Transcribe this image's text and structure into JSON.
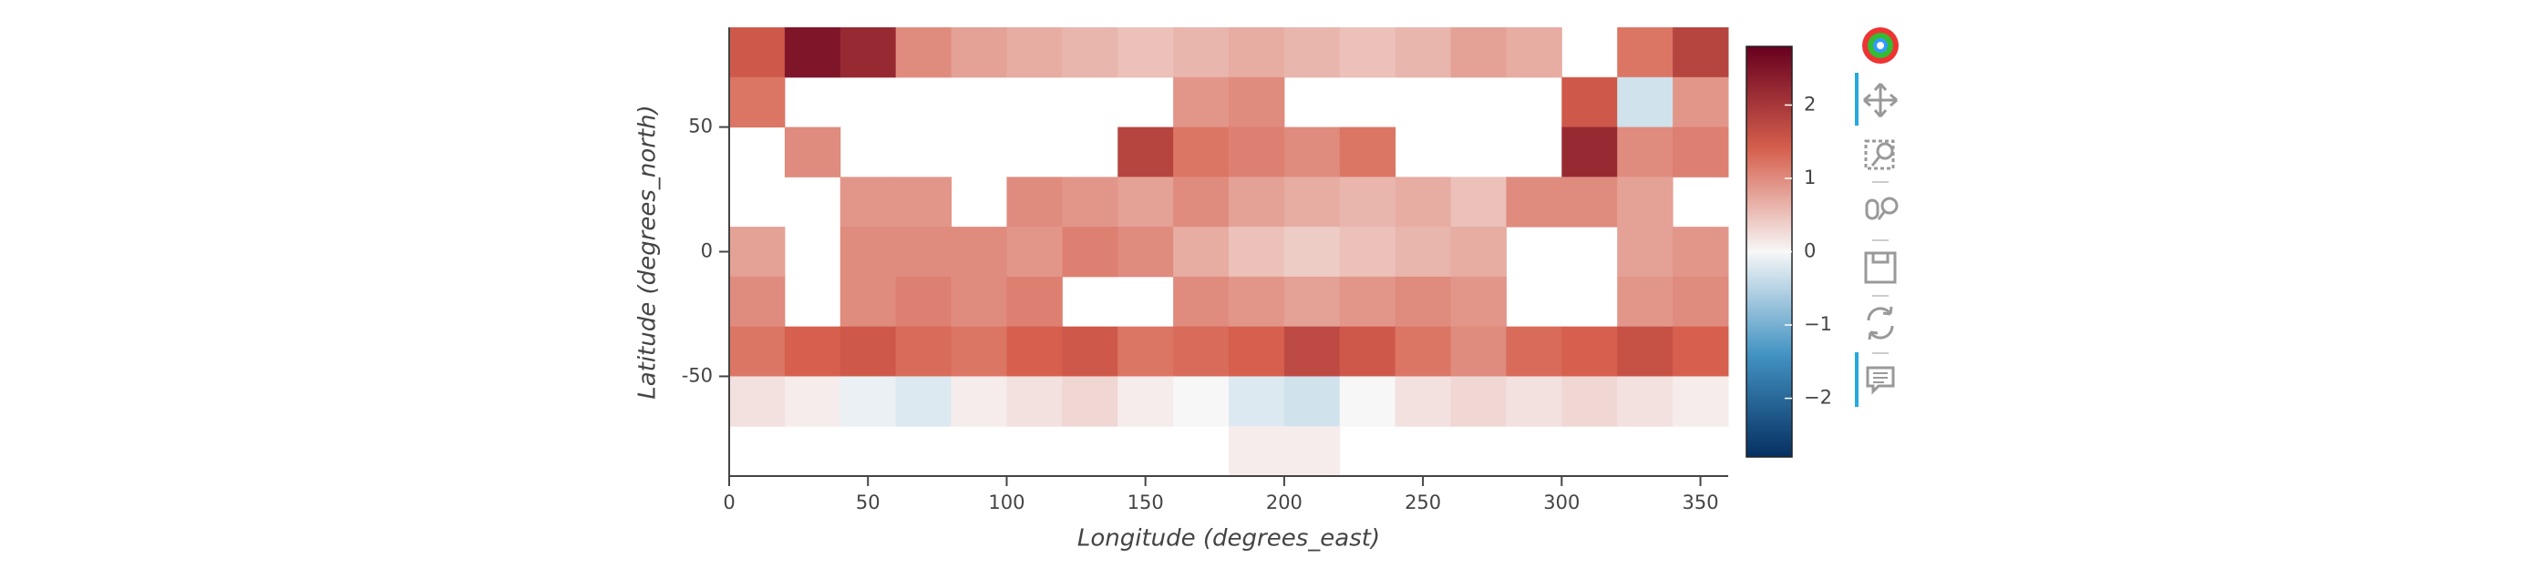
{
  "chart_data": {
    "type": "heatmap",
    "xlabel": "Longitude (degrees_east)",
    "ylabel": "Latitude (degrees_north)",
    "xlim": [
      0,
      360
    ],
    "ylim": [
      -90,
      90
    ],
    "xticks": [
      0,
      50,
      100,
      150,
      200,
      250,
      300,
      350
    ],
    "yticks": [
      -50,
      0,
      50
    ],
    "x": [
      10,
      30,
      50,
      70,
      90,
      110,
      130,
      150,
      170,
      190,
      210,
      230,
      250,
      270,
      290,
      310,
      330,
      350
    ],
    "y": [
      80,
      60,
      40,
      20,
      0,
      -20,
      -40,
      -60,
      -80
    ],
    "z": [
      [
        1.5,
        2.5,
        2.2,
        1.0,
        0.8,
        0.7,
        0.6,
        0.5,
        0.6,
        0.7,
        0.6,
        0.5,
        0.6,
        0.8,
        0.7,
        null,
        1.2,
        1.8
      ],
      [
        1.2,
        null,
        null,
        null,
        null,
        null,
        null,
        null,
        0.9,
        1.0,
        null,
        null,
        null,
        null,
        null,
        1.5,
        -0.3,
        0.9
      ],
      [
        null,
        1.0,
        null,
        null,
        null,
        null,
        null,
        1.8,
        1.2,
        1.1,
        1.0,
        1.2,
        null,
        null,
        null,
        2.2,
        1.0,
        1.1
      ],
      [
        null,
        null,
        0.9,
        0.9,
        null,
        1.0,
        0.9,
        0.8,
        1.0,
        0.8,
        0.7,
        0.6,
        0.7,
        0.5,
        1.0,
        1.0,
        0.8,
        null
      ],
      [
        0.8,
        null,
        1.0,
        1.0,
        1.0,
        0.9,
        1.1,
        1.0,
        0.7,
        0.5,
        0.4,
        0.5,
        0.6,
        0.7,
        null,
        null,
        0.8,
        0.9
      ],
      [
        1.0,
        null,
        1.0,
        1.1,
        1.0,
        1.1,
        null,
        null,
        1.0,
        0.9,
        0.8,
        0.9,
        1.0,
        0.9,
        null,
        null,
        0.9,
        1.0
      ],
      [
        1.2,
        1.4,
        1.5,
        1.3,
        1.2,
        1.4,
        1.5,
        1.2,
        1.3,
        1.4,
        1.7,
        1.5,
        1.2,
        1.0,
        1.3,
        1.4,
        1.6,
        1.4
      ],
      [
        0.2,
        0.1,
        -0.1,
        -0.2,
        0.1,
        0.2,
        0.3,
        0.1,
        0.0,
        -0.2,
        -0.3,
        0.0,
        0.2,
        0.3,
        0.2,
        0.3,
        0.2,
        0.1
      ],
      [
        null,
        null,
        null,
        null,
        null,
        null,
        null,
        null,
        null,
        0.1,
        0.1,
        null,
        null,
        null,
        null,
        null,
        null,
        null
      ]
    ],
    "clim": [
      -2.8,
      2.8
    ],
    "cticks": [
      {
        "value": -2,
        "label": "−2"
      },
      {
        "value": -1,
        "label": "−1"
      },
      0,
      1,
      2
    ],
    "colormap": [
      "#053061",
      "#4393c3",
      "#f7f7f7",
      "#d6604d",
      "#67001f"
    ]
  }
}
